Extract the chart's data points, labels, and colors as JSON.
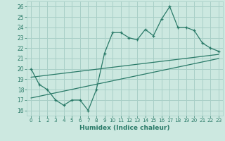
{
  "xlabel": "Humidex (Indice chaleur)",
  "x_data": [
    0,
    1,
    2,
    3,
    4,
    5,
    6,
    7,
    8,
    9,
    10,
    11,
    12,
    13,
    14,
    15,
    16,
    17,
    18,
    19,
    20,
    21,
    22,
    23
  ],
  "y_data": [
    20,
    18.5,
    18,
    17,
    16.5,
    17,
    17,
    16,
    18,
    21.5,
    23.5,
    23.5,
    23,
    22.8,
    23.8,
    23.2,
    24.8,
    26,
    24,
    24,
    23.7,
    22.5,
    22,
    21.7
  ],
  "trend1_x": [
    0,
    23
  ],
  "trend1_y": [
    19.2,
    21.4
  ],
  "trend2_x": [
    0,
    23
  ],
  "trend2_y": [
    17.2,
    21.0
  ],
  "line_color": "#2a7a68",
  "bg_color": "#cce8e0",
  "grid_color": "#a8cfc7",
  "xlim": [
    -0.5,
    23.5
  ],
  "ylim": [
    15.5,
    26.5
  ],
  "xticks": [
    0,
    1,
    2,
    3,
    4,
    5,
    6,
    7,
    8,
    9,
    10,
    11,
    12,
    13,
    14,
    15,
    16,
    17,
    18,
    19,
    20,
    21,
    22,
    23
  ],
  "yticks": [
    16,
    17,
    18,
    19,
    20,
    21,
    22,
    23,
    24,
    25,
    26
  ]
}
